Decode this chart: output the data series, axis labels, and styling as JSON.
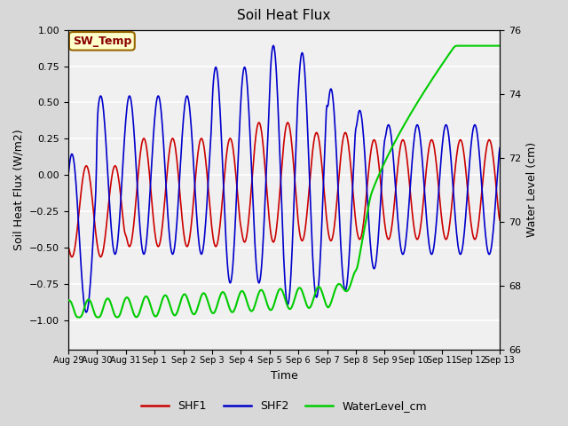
{
  "title": "Soil Heat Flux",
  "ylabel_left": "Soil Heat Flux (W/m2)",
  "ylabel_right": "Water Level (cm)",
  "xlabel": "Time",
  "ylim_left": [
    -1.2,
    1.0
  ],
  "ylim_right": [
    66.0,
    76.0
  ],
  "x_tick_labels": [
    "Aug 29",
    "Aug 30",
    "Aug 31",
    "Sep 1",
    "Sep 2",
    "Sep 3",
    "Sep 4",
    "Sep 5",
    "Sep 6",
    "Sep 7",
    "Sep 8",
    "Sep 9",
    "Sep 10",
    "Sep 11",
    "Sep 12",
    "Sep 13"
  ],
  "shf1_color": "#cc0000",
  "shf2_color": "#0000cc",
  "water_color": "#00cc00",
  "bg_color": "#d8d8d8",
  "plot_bg_color": "#f0f0f0",
  "annotation_text": "SW_Temp",
  "annotation_bg": "#ffffcc",
  "annotation_border": "#996600",
  "legend_colors": [
    "#cc0000",
    "#0000cc",
    "#00cc00"
  ],
  "legend_labels": [
    "SHF1",
    "SHF2",
    "WaterLevel_cm"
  ],
  "n_days": 15,
  "grid_color": "#ffffff",
  "figsize": [
    6.4,
    4.8
  ],
  "dpi": 100
}
